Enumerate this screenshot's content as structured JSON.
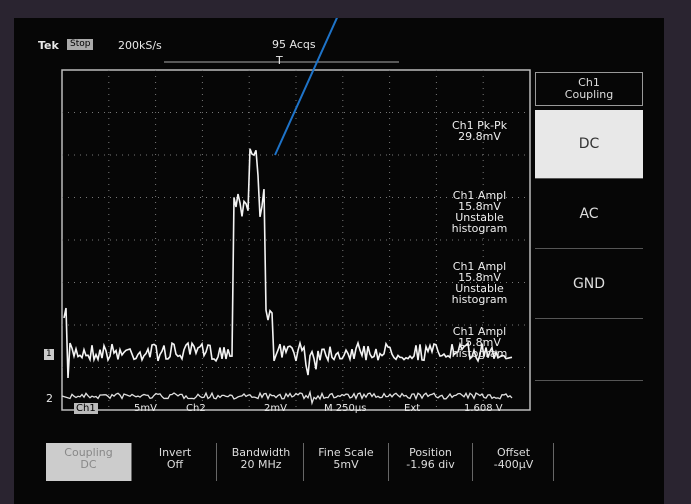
{
  "header": {
    "brand": "Tek",
    "state": "Stop",
    "sample_rate": "200kS/s",
    "acquisitions": "95 Acqs",
    "trigger_marker": "T"
  },
  "side_menu": {
    "title_line1": "Ch1",
    "title_line2": "Coupling",
    "options": [
      "DC",
      "AC",
      "GND"
    ]
  },
  "measurements": [
    {
      "lines": [
        "Ch1 Pk-Pk",
        "29.8mV"
      ]
    },
    {
      "lines": [
        "Ch1 Ampl",
        "15.8mV",
        "Unstable",
        "histogram"
      ]
    },
    {
      "lines": [
        "Ch1 Ampl",
        "15.8mV",
        "Unstable",
        "histogram"
      ]
    },
    {
      "lines": [
        "Ch1 Ampl",
        "15.8mV",
        "histogram"
      ]
    }
  ],
  "channel_markers": [
    "1",
    "2"
  ],
  "status": [
    "Ch1",
    "5mV",
    "Ch2",
    "2mV",
    "M 250µs",
    "Ext",
    "1.608 V"
  ],
  "bottom_menu": [
    {
      "label": "Coupling",
      "value": "DC"
    },
    {
      "label": "Invert",
      "value": "Off"
    },
    {
      "label": "Bandwidth",
      "value": "20 MHz"
    },
    {
      "label": "Fine Scale",
      "value": "5mV"
    },
    {
      "label": "Position",
      "value": "-1.96 div"
    },
    {
      "label": "Offset",
      "value": "-400µV"
    }
  ]
}
